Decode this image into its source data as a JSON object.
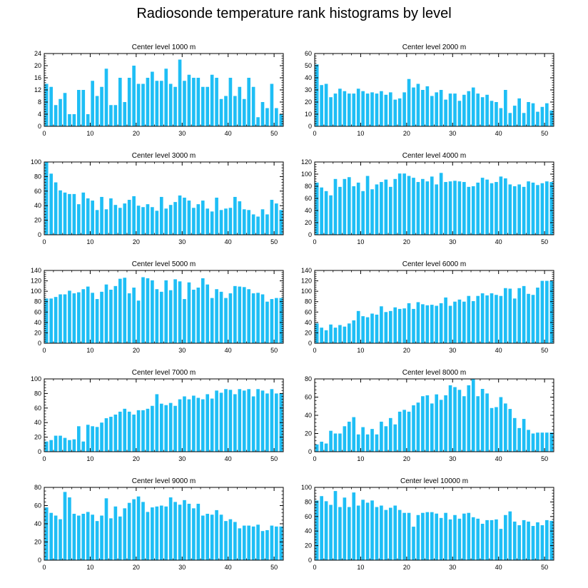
{
  "title": "Radiosonde temperature rank histograms by level",
  "colors": {
    "bar": "#1EBEF5",
    "axis": "#000000",
    "background": "#ffffff"
  },
  "chart_data": [
    {
      "type": "bar",
      "title": "Center level 1000 m",
      "xlim": [
        0,
        52
      ],
      "ylim": [
        0,
        24
      ],
      "xticks": [
        0,
        10,
        20,
        30,
        40,
        50
      ],
      "yticks": [
        0,
        4,
        8,
        12,
        16,
        20,
        24
      ],
      "ytick_labels": [
        "0",
        "4",
        "8",
        "12",
        "16",
        "20",
        "24"
      ],
      "values": [
        14,
        13,
        7,
        9,
        11,
        4,
        4,
        12,
        12,
        4,
        15,
        10,
        13,
        19,
        7,
        7,
        16,
        8,
        16,
        20,
        14,
        14,
        16,
        18,
        15,
        15,
        19,
        14,
        13,
        22,
        15,
        17,
        16,
        16,
        13,
        13,
        17,
        16,
        9,
        10,
        16,
        10,
        13,
        9,
        16,
        13,
        3,
        8,
        6,
        14,
        6,
        4
      ]
    },
    {
      "type": "bar",
      "title": "Center level 2000 m",
      "xlim": [
        0,
        52
      ],
      "ylim": [
        0,
        60
      ],
      "xticks": [
        0,
        10,
        20,
        30,
        40,
        50
      ],
      "yticks": [
        0,
        10,
        20,
        30,
        40,
        50,
        60
      ],
      "ytick_labels": [
        "0",
        "10",
        "20",
        "30",
        "40",
        "50",
        "60"
      ],
      "values": [
        51,
        34,
        35,
        24,
        27,
        31,
        29,
        27,
        27,
        31,
        29,
        27,
        28,
        27,
        29,
        26,
        28,
        22,
        23,
        28,
        39,
        32,
        35,
        30,
        33,
        25,
        28,
        30,
        22,
        27,
        27,
        21,
        26,
        29,
        32,
        27,
        24,
        26,
        21,
        20,
        15,
        30,
        11,
        17,
        23,
        11,
        20,
        19,
        12,
        16,
        19,
        13
      ]
    },
    {
      "type": "bar",
      "title": "Center level 3000 m",
      "xlim": [
        0,
        52
      ],
      "ylim": [
        0,
        100
      ],
      "xticks": [
        0,
        10,
        20,
        30,
        40,
        50
      ],
      "yticks": [
        0,
        20,
        40,
        60,
        80,
        100
      ],
      "ytick_labels": [
        "0",
        "20",
        "40",
        "60",
        "80",
        "100"
      ],
      "values": [
        100,
        84,
        72,
        61,
        58,
        56,
        56,
        42,
        58,
        50,
        47,
        34,
        52,
        35,
        50,
        41,
        37,
        43,
        48,
        53,
        40,
        38,
        42,
        38,
        33,
        52,
        36,
        41,
        45,
        54,
        51,
        47,
        37,
        42,
        47,
        36,
        32,
        51,
        34,
        36,
        37,
        52,
        46,
        35,
        34,
        28,
        25,
        35,
        28,
        48,
        43,
        34
      ]
    },
    {
      "type": "bar",
      "title": "Center level 4000 m",
      "xlim": [
        0,
        52
      ],
      "ylim": [
        0,
        120
      ],
      "xticks": [
        0,
        10,
        20,
        30,
        40,
        50
      ],
      "yticks": [
        0,
        20,
        40,
        60,
        80,
        100,
        120
      ],
      "ytick_labels": [
        "0",
        "20",
        "40",
        "60",
        "80",
        "100",
        "120"
      ],
      "values": [
        86,
        78,
        72,
        65,
        92,
        79,
        92,
        95,
        80,
        86,
        72,
        97,
        75,
        83,
        87,
        91,
        79,
        92,
        101,
        101,
        97,
        94,
        87,
        92,
        88,
        96,
        83,
        102,
        87,
        88,
        89,
        88,
        87,
        79,
        80,
        86,
        94,
        91,
        85,
        87,
        96,
        93,
        83,
        80,
        83,
        79,
        88,
        86,
        82,
        85,
        88,
        87
      ]
    },
    {
      "type": "bar",
      "title": "Center level 5000 m",
      "xlim": [
        0,
        52
      ],
      "ylim": [
        0,
        140
      ],
      "xticks": [
        0,
        10,
        20,
        30,
        40,
        50
      ],
      "yticks": [
        0,
        20,
        40,
        60,
        80,
        100,
        120,
        140
      ],
      "ytick_labels": [
        "0",
        "20",
        "40",
        "60",
        "80",
        "100",
        "120",
        "140"
      ],
      "values": [
        86,
        86,
        89,
        94,
        94,
        101,
        96,
        98,
        104,
        109,
        97,
        85,
        99,
        113,
        103,
        110,
        124,
        126,
        96,
        107,
        82,
        127,
        125,
        121,
        104,
        99,
        121,
        102,
        123,
        119,
        85,
        117,
        103,
        107,
        125,
        113,
        87,
        104,
        99,
        87,
        96,
        110,
        109,
        108,
        104,
        96,
        97,
        94,
        80,
        85,
        87,
        87
      ]
    },
    {
      "type": "bar",
      "title": "Center level 6000 m",
      "xlim": [
        0,
        52
      ],
      "ylim": [
        0,
        140
      ],
      "xticks": [
        0,
        10,
        20,
        30,
        40,
        50
      ],
      "yticks": [
        0,
        20,
        40,
        60,
        80,
        100,
        120,
        140
      ],
      "ytick_labels": [
        "0",
        "20",
        "40",
        "60",
        "80",
        "100",
        "120",
        "140"
      ],
      "values": [
        38,
        30,
        25,
        36,
        30,
        35,
        32,
        38,
        44,
        62,
        52,
        50,
        57,
        55,
        71,
        60,
        62,
        69,
        66,
        67,
        77,
        66,
        79,
        75,
        73,
        74,
        72,
        77,
        88,
        72,
        80,
        84,
        80,
        91,
        81,
        91,
        96,
        92,
        96,
        93,
        91,
        106,
        105,
        86,
        106,
        110,
        95,
        93,
        107,
        120,
        120,
        120
      ]
    },
    {
      "type": "bar",
      "title": "Center level 7000 m",
      "xlim": [
        0,
        52
      ],
      "ylim": [
        0,
        100
      ],
      "xticks": [
        0,
        10,
        20,
        30,
        40,
        50
      ],
      "yticks": [
        0,
        20,
        40,
        60,
        80,
        100
      ],
      "ytick_labels": [
        "0",
        "20",
        "40",
        "60",
        "80",
        "100"
      ],
      "values": [
        14,
        16,
        22,
        22,
        19,
        16,
        17,
        35,
        14,
        37,
        35,
        34,
        40,
        46,
        48,
        51,
        55,
        59,
        55,
        51,
        57,
        57,
        59,
        63,
        79,
        66,
        64,
        67,
        63,
        72,
        76,
        72,
        77,
        74,
        72,
        79,
        73,
        84,
        81,
        86,
        85,
        79,
        86,
        84,
        86,
        76,
        86,
        84,
        80,
        86,
        80,
        80
      ]
    },
    {
      "type": "bar",
      "title": "Center level 8000 m",
      "xlim": [
        0,
        52
      ],
      "ylim": [
        0,
        80
      ],
      "xticks": [
        0,
        10,
        20,
        30,
        40,
        50
      ],
      "yticks": [
        0,
        20,
        40,
        60,
        80
      ],
      "ytick_labels": [
        "0",
        "20",
        "40",
        "60",
        "80"
      ],
      "values": [
        8,
        11,
        9,
        23,
        20,
        20,
        28,
        33,
        38,
        19,
        27,
        19,
        25,
        19,
        33,
        28,
        37,
        30,
        44,
        46,
        44,
        51,
        54,
        61,
        62,
        53,
        63,
        57,
        62,
        73,
        71,
        68,
        61,
        73,
        80,
        61,
        69,
        64,
        48,
        49,
        60,
        53,
        47,
        37,
        26,
        36,
        24,
        20,
        21,
        21,
        21,
        21
      ]
    },
    {
      "type": "bar",
      "title": "Center level 9000 m",
      "xlim": [
        0,
        52
      ],
      "ylim": [
        0,
        80
      ],
      "xticks": [
        0,
        10,
        20,
        30,
        40,
        50
      ],
      "yticks": [
        0,
        20,
        40,
        60,
        80
      ],
      "ytick_labels": [
        "0",
        "20",
        "40",
        "60",
        "80"
      ],
      "values": [
        58,
        52,
        49,
        45,
        75,
        69,
        51,
        49,
        51,
        53,
        50,
        43,
        49,
        68,
        46,
        59,
        48,
        57,
        63,
        67,
        70,
        64,
        53,
        58,
        59,
        60,
        59,
        69,
        64,
        61,
        66,
        62,
        57,
        62,
        49,
        51,
        50,
        55,
        50,
        43,
        45,
        42,
        35,
        38,
        38,
        37,
        39,
        32,
        33,
        38,
        37,
        37
      ]
    },
    {
      "type": "bar",
      "title": "Center level 10000 m",
      "xlim": [
        0,
        52
      ],
      "ylim": [
        0,
        100
      ],
      "xticks": [
        0,
        10,
        20,
        30,
        40,
        50
      ],
      "yticks": [
        0,
        20,
        40,
        60,
        80,
        100
      ],
      "ytick_labels": [
        "0",
        "20",
        "40",
        "60",
        "80",
        "100"
      ],
      "values": [
        82,
        88,
        81,
        76,
        95,
        73,
        86,
        73,
        93,
        75,
        83,
        79,
        82,
        73,
        75,
        69,
        72,
        75,
        69,
        65,
        65,
        46,
        62,
        65,
        66,
        66,
        64,
        58,
        65,
        56,
        62,
        57,
        64,
        65,
        59,
        57,
        50,
        55,
        55,
        56,
        43,
        62,
        67,
        53,
        48,
        55,
        53,
        47,
        52,
        48,
        55,
        54
      ]
    }
  ]
}
